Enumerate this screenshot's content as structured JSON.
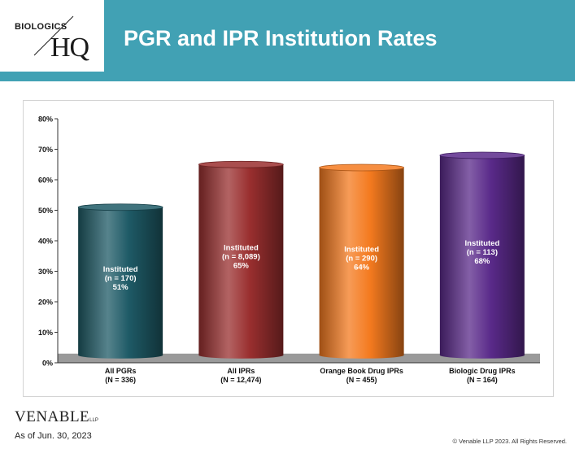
{
  "header": {
    "logo_top": "BIOLOGICS",
    "logo_hq": "HQ",
    "title": "PGR and IPR Institution Rates"
  },
  "colors": {
    "header_bg": "#41a1b4",
    "bar_colors": [
      "#1e5a66",
      "#9a2f2f",
      "#f47a1f",
      "#5a2a8a"
    ],
    "floor": "#9a9a9a"
  },
  "chart_data": {
    "type": "bar",
    "categories": [
      {
        "line1": "All PGRs",
        "line2": "(N = 336)"
      },
      {
        "line1": "All IPRs",
        "line2": "(N = 12,474)"
      },
      {
        "line1": "Orange Book Drug IPRs",
        "line2": "(N = 455)"
      },
      {
        "line1": "Biologic Drug IPRs",
        "line2": "(N = 164)"
      }
    ],
    "values": [
      51,
      65,
      64,
      68
    ],
    "bar_labels": [
      {
        "line1": "Instituted",
        "line2": "(n = 170)",
        "line3": "51%"
      },
      {
        "line1": "Instituted",
        "line2": "(n = 8,089)",
        "line3": "65%"
      },
      {
        "line1": "Instituted",
        "line2": "(n = 290)",
        "line3": "64%"
      },
      {
        "line1": "Instituted",
        "line2": "(n = 113)",
        "line3": "68%"
      }
    ],
    "y_ticks": [
      "0%",
      "10%",
      "20%",
      "30%",
      "40%",
      "50%",
      "60%",
      "70%",
      "80%"
    ],
    "ylim": [
      0,
      80
    ],
    "grid": false,
    "legend": "none"
  },
  "footer": {
    "firm": "VENABLE",
    "firm_suffix": "LLP",
    "as_of": "As of Jun. 30, 2023",
    "copyright": "© Venable LLP 2023. All Rights Reserved."
  }
}
